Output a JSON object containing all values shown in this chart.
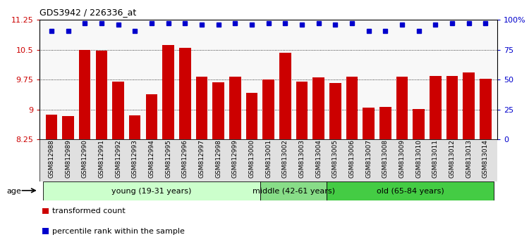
{
  "title": "GDS3942 / 226336_at",
  "samples": [
    "GSM812988",
    "GSM812989",
    "GSM812990",
    "GSM812991",
    "GSM812992",
    "GSM812993",
    "GSM812994",
    "GSM812995",
    "GSM812996",
    "GSM812997",
    "GSM812998",
    "GSM812999",
    "GSM813000",
    "GSM813001",
    "GSM813002",
    "GSM813003",
    "GSM813004",
    "GSM813005",
    "GSM813006",
    "GSM813007",
    "GSM813008",
    "GSM813009",
    "GSM813010",
    "GSM813011",
    "GSM813012",
    "GSM813013",
    "GSM813014"
  ],
  "bar_values": [
    8.88,
    8.83,
    10.5,
    10.47,
    9.7,
    8.85,
    9.38,
    10.62,
    10.55,
    9.82,
    9.68,
    9.82,
    9.42,
    9.75,
    10.42,
    9.7,
    9.8,
    9.67,
    9.83,
    9.05,
    9.07,
    9.82,
    9.02,
    9.85,
    9.85,
    9.93,
    9.78
  ],
  "percentile_values": [
    91,
    91,
    97,
    97,
    96,
    91,
    97,
    97,
    97,
    96,
    96,
    97,
    96,
    97,
    97,
    96,
    97,
    96,
    97,
    91,
    91,
    96,
    91,
    96,
    97,
    97,
    97
  ],
  "bar_color": "#cc0000",
  "percentile_color": "#0000cc",
  "ylim_left": [
    8.25,
    11.25
  ],
  "ylim_right": [
    0,
    100
  ],
  "yticks_left": [
    8.25,
    9.0,
    9.75,
    10.5,
    11.25
  ],
  "yticks_right": [
    0,
    25,
    50,
    75,
    100
  ],
  "ytick_labels_left": [
    "8.25",
    "9",
    "9.75",
    "10.5",
    "11.25"
  ],
  "ytick_labels_right": [
    "0",
    "25",
    "50",
    "75",
    "100%"
  ],
  "groups": [
    {
      "label": "young (19-31 years)",
      "start": 0,
      "end": 13,
      "color": "#ccffcc"
    },
    {
      "label": "middle (42-61 years)",
      "start": 13,
      "end": 17,
      "color": "#88dd88"
    },
    {
      "label": "old (65-84 years)",
      "start": 17,
      "end": 27,
      "color": "#44cc44"
    }
  ],
  "age_label": "age",
  "legend_bar_label": "transformed count",
  "legend_dot_label": "percentile rank within the sample",
  "grid_color": "#000000"
}
